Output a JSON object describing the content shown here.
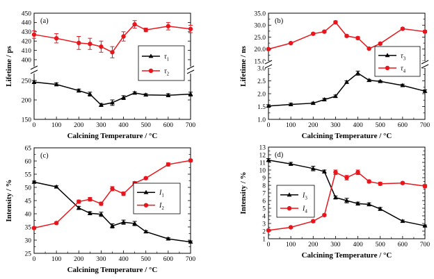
{
  "figure": {
    "x_categories": [
      0,
      100,
      200,
      250,
      300,
      350,
      400,
      450,
      500,
      600,
      700
    ],
    "x_ticks": [
      "0",
      "100",
      "200",
      "300",
      "400",
      "500",
      "600",
      "700"
    ]
  },
  "chart_data": [
    {
      "id": "a",
      "type": "line",
      "panel_label": "(a)",
      "title": "",
      "xlabel": "Calcining Temperature / °C",
      "ylabel": "Lifetime / ps",
      "xlim": [
        0,
        700
      ],
      "broken_axis": true,
      "upper": {
        "ylim": [
          400,
          450
        ],
        "ticks": [
          "400",
          "410",
          "420",
          "430",
          "440",
          "450"
        ]
      },
      "lower": {
        "ylim": [
          150,
          250
        ],
        "ticks": [
          "150",
          "200",
          "250"
        ]
      },
      "x_tick_labels": [
        "0",
        "100",
        "200",
        "300",
        "400",
        "500",
        "600",
        "700"
      ],
      "legend_position": "right",
      "series": [
        {
          "name": "τ1",
          "sym": "τ",
          "sub": "1",
          "color": "#000000",
          "marker": "triangle",
          "axis": "lower",
          "x": [
            0,
            100,
            200,
            250,
            300,
            350,
            400,
            450,
            500,
            600,
            700
          ],
          "values": [
            246,
            240,
            224,
            215,
            187,
            193,
            206,
            218,
            213,
            212,
            215
          ],
          "errors": [
            4,
            4,
            4,
            5,
            4,
            7,
            5,
            3,
            3,
            4,
            5
          ]
        },
        {
          "name": "τ2",
          "sym": "τ",
          "sub": "2",
          "color": "#e8161c",
          "marker": "circle",
          "axis": "upper",
          "x": [
            0,
            100,
            200,
            250,
            300,
            350,
            400,
            450,
            500,
            600,
            700
          ],
          "values": [
            427,
            423,
            418,
            417,
            414,
            408,
            425,
            438,
            432,
            436,
            433
          ],
          "errors": [
            4,
            5,
            7,
            6,
            6,
            6,
            5,
            4,
            2,
            4,
            4
          ]
        }
      ]
    },
    {
      "id": "b",
      "type": "line",
      "panel_label": "(b)",
      "title": "",
      "xlabel": "Calcining Temperature / °C",
      "ylabel": "Lifetime / ns",
      "xlim": [
        0,
        700
      ],
      "broken_axis": true,
      "upper": {
        "ylim": [
          15,
          35
        ],
        "ticks": [
          "15.0",
          "20.0",
          "25.0",
          "30.0",
          "35.0"
        ]
      },
      "lower": {
        "ylim": [
          1,
          3
        ],
        "ticks": [
          "1.0",
          "1.5",
          "2.0",
          "2.5",
          "3.0"
        ]
      },
      "x_tick_labels": [
        "0",
        "100",
        "200",
        "300",
        "400",
        "500",
        "600",
        "700"
      ],
      "legend_position": "right",
      "series": [
        {
          "name": "τ3",
          "sym": "τ",
          "sub": "3",
          "color": "#000000",
          "marker": "triangle",
          "axis": "lower",
          "x": [
            0,
            100,
            200,
            250,
            300,
            350,
            400,
            450,
            500,
            600,
            700
          ],
          "values": [
            1.52,
            1.58,
            1.63,
            1.77,
            1.9,
            2.45,
            2.8,
            2.52,
            2.48,
            2.32,
            2.1
          ],
          "errors": [
            0.05,
            0.05,
            0.04,
            0.05,
            0.05,
            0.05,
            0.08,
            0.04,
            0.03,
            0.05,
            0.05
          ]
        },
        {
          "name": "τ4",
          "sym": "τ",
          "sub": "4",
          "color": "#e8161c",
          "marker": "circle",
          "axis": "upper",
          "x": [
            0,
            100,
            200,
            250,
            300,
            350,
            400,
            450,
            500,
            600,
            700
          ],
          "values": [
            20.0,
            22.5,
            26.4,
            27.3,
            31.2,
            25.5,
            24.6,
            20.2,
            22.3,
            28.5,
            27.3
          ],
          "errors": [
            0.4,
            0.4,
            0.4,
            0.4,
            0.6,
            0.5,
            0.6,
            0.4,
            0.4,
            0.4,
            0.5
          ]
        }
      ]
    },
    {
      "id": "c",
      "type": "line",
      "panel_label": "(c)",
      "title": "",
      "xlabel": "Calcining Temperature / °C",
      "ylabel": "Intensity / %",
      "xlim": [
        0,
        700
      ],
      "ylim": [
        25,
        65
      ],
      "y_ticks": [
        "25",
        "30",
        "35",
        "40",
        "45",
        "50",
        "55",
        "60",
        "65"
      ],
      "x_tick_labels": [
        "0",
        "100",
        "200",
        "300",
        "400",
        "500",
        "600",
        "700"
      ],
      "legend_position": "center",
      "series": [
        {
          "name": "I1",
          "sym": "I",
          "sub": "1",
          "color": "#000000",
          "marker": "triangle",
          "x": [
            0,
            100,
            200,
            250,
            300,
            350,
            400,
            450,
            500,
            600,
            700
          ],
          "values": [
            52.0,
            50.2,
            42.2,
            40.2,
            39.8,
            35.4,
            36.8,
            36.3,
            33.2,
            30.5,
            29.3
          ],
          "errors": [
            0.4,
            0.4,
            0.6,
            0.6,
            0.8,
            0.8,
            0.8,
            0.8,
            0.4,
            0.4,
            0.4
          ]
        },
        {
          "name": "I2",
          "sym": "I",
          "sub": "2",
          "color": "#e8161c",
          "marker": "circle",
          "x": [
            0,
            100,
            200,
            250,
            300,
            350,
            400,
            450,
            500,
            600,
            700
          ],
          "values": [
            34.6,
            36.5,
            44.6,
            45.5,
            43.8,
            49.5,
            47.6,
            51.6,
            53.5,
            58.7,
            60.2
          ],
          "errors": [
            0.4,
            0.4,
            0.6,
            0.7,
            0.6,
            0.8,
            0.7,
            0.6,
            0.4,
            0.6,
            0.5
          ]
        }
      ]
    },
    {
      "id": "d",
      "type": "line",
      "panel_label": "(d)",
      "title": "",
      "xlabel": "Calcining Temperature / °C",
      "ylabel": "Intensity / %",
      "xlim": [
        0,
        700
      ],
      "ylim": [
        1,
        13
      ],
      "y_ticks": [
        "1",
        "2",
        "3",
        "4",
        "5",
        "6",
        "7",
        "8",
        "9",
        "10",
        "11",
        "12",
        "13"
      ],
      "x_tick_labels": [
        "0",
        "100",
        "200",
        "300",
        "400",
        "500",
        "600",
        "700"
      ],
      "legend_position": "left",
      "series": [
        {
          "name": "I3",
          "sym": "I",
          "sub": "3",
          "color": "#000000",
          "marker": "triangle",
          "x": [
            0,
            100,
            200,
            250,
            300,
            350,
            400,
            450,
            500,
            600,
            700
          ],
          "values": [
            11.3,
            10.8,
            10.2,
            9.8,
            6.4,
            6.0,
            5.6,
            5.5,
            4.9,
            3.3,
            2.7
          ],
          "errors": [
            0.2,
            0.2,
            0.3,
            0.2,
            0.2,
            0.3,
            0.2,
            0.2,
            0.2,
            0.15,
            0.1
          ]
        },
        {
          "name": "I4",
          "sym": "I",
          "sub": "4",
          "color": "#e8161c",
          "marker": "circle",
          "x": [
            0,
            100,
            200,
            250,
            300,
            350,
            400,
            450,
            500,
            600,
            700
          ],
          "values": [
            2.1,
            2.5,
            3.3,
            4.1,
            9.7,
            9.0,
            9.7,
            8.5,
            8.2,
            8.3,
            7.9
          ],
          "errors": [
            0.1,
            0.1,
            0.15,
            0.15,
            0.3,
            0.3,
            0.3,
            0.2,
            0.2,
            0.15,
            0.2
          ]
        }
      ]
    }
  ]
}
